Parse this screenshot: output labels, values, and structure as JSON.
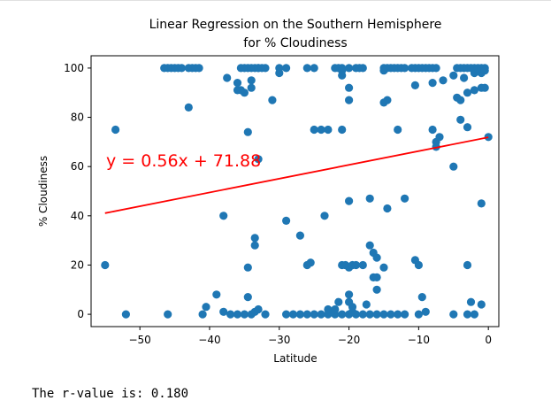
{
  "chart_data": {
    "type": "scatter",
    "title": "Linear Regression on the Southern Hemisphere",
    "title_line2": "for % Cloudiness",
    "xlabel": "Latitude",
    "ylabel": "% Cloudiness",
    "xlim": [
      -57,
      1.5
    ],
    "ylim": [
      -5,
      105
    ],
    "xticks": [
      -50,
      -40,
      -30,
      -20,
      -10,
      0
    ],
    "yticks": [
      0,
      20,
      40,
      60,
      80,
      100
    ],
    "xtick_labels": [
      "−50",
      "−40",
      "−30",
      "−20",
      "−10",
      "0"
    ],
    "ytick_labels": [
      "0",
      "20",
      "40",
      "60",
      "80",
      "100"
    ],
    "point_color": "#1f77b4",
    "line_color": "#ff0000",
    "regression": {
      "slope": 0.56,
      "intercept": 71.88,
      "x_range": [
        -55,
        0
      ]
    },
    "equation_label": "y = 0.56x + 71.88",
    "points": [
      [
        -55,
        20
      ],
      [
        -53.5,
        75
      ],
      [
        -52,
        0
      ],
      [
        -46,
        0
      ],
      [
        -41,
        0
      ],
      [
        -40.5,
        3
      ],
      [
        -39,
        8
      ],
      [
        -38,
        1
      ],
      [
        -37,
        0
      ],
      [
        -36,
        0
      ],
      [
        -35,
        0
      ],
      [
        -34,
        0
      ],
      [
        -33.5,
        1
      ],
      [
        -33,
        2
      ],
      [
        -32,
        0
      ],
      [
        -38,
        40
      ],
      [
        -34.5,
        7
      ],
      [
        -34.5,
        19
      ],
      [
        -33.5,
        28
      ],
      [
        -33.5,
        31
      ],
      [
        -33,
        63
      ],
      [
        -34.5,
        74
      ],
      [
        -33,
        100
      ],
      [
        -29,
        0
      ],
      [
        -28,
        0
      ],
      [
        -27,
        0
      ],
      [
        -26,
        0
      ],
      [
        -25,
        0
      ],
      [
        -24,
        0
      ],
      [
        -23,
        0
      ],
      [
        -22,
        0
      ],
      [
        -21,
        0
      ],
      [
        -20,
        0
      ],
      [
        -19,
        0
      ],
      [
        -18,
        0
      ],
      [
        -17,
        0
      ],
      [
        -16,
        0
      ],
      [
        -15,
        0
      ],
      [
        -14,
        0
      ],
      [
        -13,
        0
      ],
      [
        -12,
        0
      ],
      [
        -10,
        0
      ],
      [
        -9,
        1
      ],
      [
        -5,
        0
      ],
      [
        -3,
        0
      ],
      [
        -2,
        0
      ],
      [
        -1,
        4
      ],
      [
        -22.5,
        1
      ],
      [
        -23,
        2
      ],
      [
        -21.5,
        5
      ],
      [
        -20,
        5
      ],
      [
        -20,
        8
      ],
      [
        -19.5,
        1
      ],
      [
        -19.5,
        3
      ],
      [
        -17.5,
        4
      ],
      [
        -22,
        2
      ],
      [
        -29,
        38
      ],
      [
        -27,
        32
      ],
      [
        -26,
        20
      ],
      [
        -25.5,
        21
      ],
      [
        -23.5,
        40
      ],
      [
        -21,
        20
      ],
      [
        -20.5,
        20
      ],
      [
        -20,
        19
      ],
      [
        -19.5,
        20
      ],
      [
        -19,
        20
      ],
      [
        -18,
        20
      ],
      [
        -17,
        28
      ],
      [
        -16.5,
        25
      ],
      [
        -16,
        23
      ],
      [
        -16.5,
        15
      ],
      [
        -16,
        15
      ],
      [
        -16,
        10
      ],
      [
        -15,
        19
      ],
      [
        -14.5,
        43
      ],
      [
        -17,
        47
      ],
      [
        -20,
        46
      ],
      [
        -12,
        47
      ],
      [
        -10.5,
        22
      ],
      [
        -10,
        20
      ],
      [
        -9.5,
        7
      ],
      [
        -3,
        20
      ],
      [
        -2.5,
        5
      ],
      [
        -1,
        45
      ],
      [
        -5,
        60
      ],
      [
        -4,
        79
      ],
      [
        -3,
        76
      ],
      [
        -7.5,
        70
      ],
      [
        -7.5,
        68
      ],
      [
        -8,
        75
      ],
      [
        -7,
        72
      ],
      [
        0,
        72
      ],
      [
        -24,
        75
      ],
      [
        -25,
        75
      ],
      [
        -23,
        75
      ],
      [
        -21,
        75
      ],
      [
        -13,
        75
      ],
      [
        -20,
        87
      ],
      [
        -21,
        97
      ],
      [
        -20,
        92
      ],
      [
        -15,
        86
      ],
      [
        -14.5,
        87
      ],
      [
        -10.5,
        93
      ],
      [
        -8,
        94
      ],
      [
        -6.5,
        95
      ],
      [
        -4,
        87
      ],
      [
        -4.5,
        88
      ],
      [
        -3,
        90
      ],
      [
        -2,
        91
      ],
      [
        -1,
        92
      ],
      [
        -0.5,
        92
      ],
      [
        -3.5,
        96
      ],
      [
        -5,
        97
      ],
      [
        -2,
        98
      ],
      [
        -1,
        98
      ],
      [
        -31,
        87
      ],
      [
        -35,
        90
      ],
      [
        -35.5,
        91
      ],
      [
        -34,
        92
      ],
      [
        -34,
        95
      ],
      [
        -36,
        91
      ],
      [
        -36,
        94
      ],
      [
        -37.5,
        96
      ],
      [
        -43,
        84
      ],
      [
        -46.5,
        100
      ],
      [
        -46,
        100
      ],
      [
        -45.5,
        100
      ],
      [
        -45,
        100
      ],
      [
        -44.5,
        100
      ],
      [
        -44,
        100
      ],
      [
        -43,
        100
      ],
      [
        -42.5,
        100
      ],
      [
        -42,
        100
      ],
      [
        -41.5,
        100
      ],
      [
        -35.5,
        100
      ],
      [
        -35,
        100
      ],
      [
        -34.5,
        100
      ],
      [
        -34,
        100
      ],
      [
        -33.5,
        100
      ],
      [
        -33,
        100
      ],
      [
        -32.5,
        100
      ],
      [
        -32,
        100
      ],
      [
        -30,
        100
      ],
      [
        -30,
        98
      ],
      [
        -29,
        100
      ],
      [
        -26,
        100
      ],
      [
        -25,
        100
      ],
      [
        -22,
        100
      ],
      [
        -21.5,
        100
      ],
      [
        -21,
        100
      ],
      [
        -20,
        100
      ],
      [
        -19,
        100
      ],
      [
        -18.5,
        100
      ],
      [
        -18,
        100
      ],
      [
        -15,
        100
      ],
      [
        -14.5,
        100
      ],
      [
        -14,
        100
      ],
      [
        -13.5,
        100
      ],
      [
        -13,
        100
      ],
      [
        -12.5,
        100
      ],
      [
        -12,
        100
      ],
      [
        -11,
        100
      ],
      [
        -10.5,
        100
      ],
      [
        -10,
        100
      ],
      [
        -9.5,
        100
      ],
      [
        -9,
        100
      ],
      [
        -8.5,
        100
      ],
      [
        -8,
        100
      ],
      [
        -7.5,
        100
      ],
      [
        -4.5,
        100
      ],
      [
        -4,
        100
      ],
      [
        -3.5,
        100
      ],
      [
        -3,
        100
      ],
      [
        -2.5,
        100
      ],
      [
        -2,
        100
      ],
      [
        -1.5,
        100
      ],
      [
        -1,
        100
      ],
      [
        -0.5,
        100
      ],
      [
        -0.5,
        99
      ],
      [
        -15,
        99
      ],
      [
        -21,
        99
      ]
    ]
  },
  "output": {
    "r_value_text": "The r-value is: 0.180"
  }
}
